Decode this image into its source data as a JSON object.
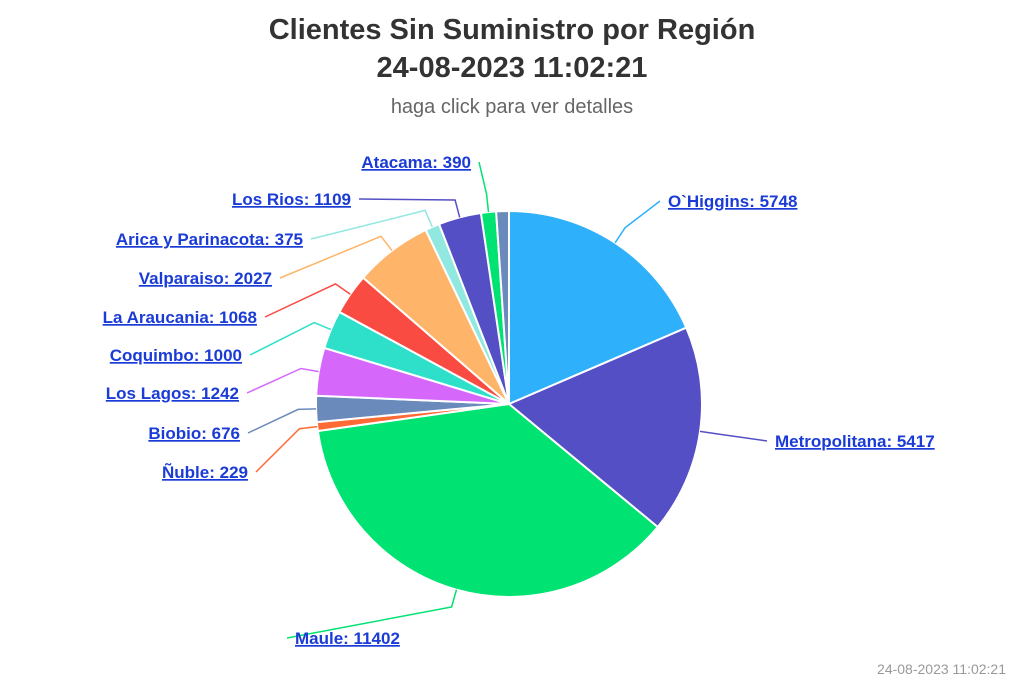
{
  "header": {
    "title_line1": "Clientes Sin Suministro por Región",
    "title_line2": "24-08-2023 11:02:21",
    "subtitle": "haga click para ver detalles"
  },
  "credits": "24-08-2023 11:02:21",
  "chart_data": {
    "type": "pie",
    "title": "Clientes Sin Suministro por Región 24-08-2023 11:02:21",
    "subtitle": "haga click para ver detalles",
    "series": [
      {
        "points": [
          {
            "name": "O`Higgins",
            "value": 5748,
            "color": "#2fb0fb"
          },
          {
            "name": "Metropolitana",
            "value": 5417,
            "color": "#544fc5"
          },
          {
            "name": "Maule",
            "value": 11402,
            "color": "#00e272"
          },
          {
            "name": "Ñuble",
            "value": 229,
            "color": "#fe6a35"
          },
          {
            "name": "Biobio",
            "value": 676,
            "color": "#6b8abc"
          },
          {
            "name": "Los Lagos",
            "value": 1242,
            "color": "#d568fb"
          },
          {
            "name": "Coquimbo",
            "value": 1000,
            "color": "#2ee0ca"
          },
          {
            "name": "La Araucania",
            "value": 1068,
            "color": "#fa4b42"
          },
          {
            "name": "Valparaiso",
            "value": 2027,
            "color": "#feb56a"
          },
          {
            "name": "Arica y Parinacota",
            "value": 375,
            "color": "#91e8e1"
          },
          {
            "name": "Los Rios",
            "value": 1109,
            "color": "#544fc5"
          },
          {
            "name": "Atacama",
            "value": 390,
            "color": "#00e272"
          },
          {
            "name": "",
            "value": 330,
            "color": "#6b8abc"
          }
        ]
      }
    ]
  }
}
